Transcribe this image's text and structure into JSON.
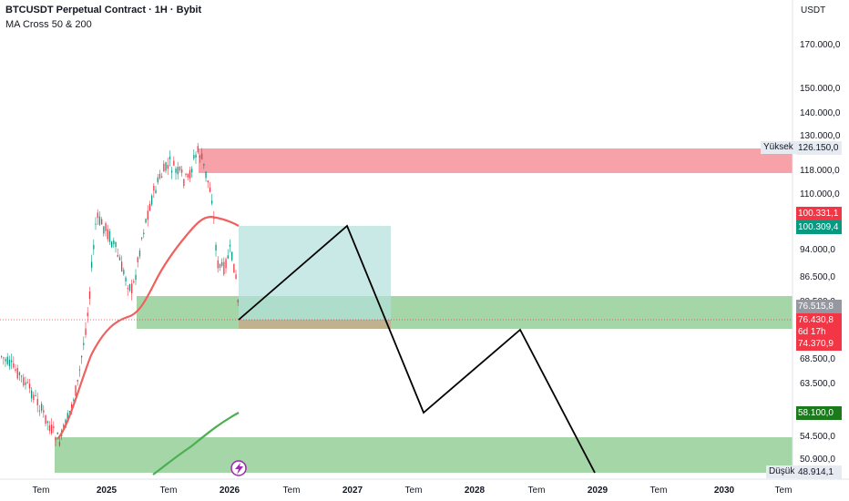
{
  "header": {
    "title": "BTCUSDT Perpetual Contract · 1H · Bybit",
    "indicator": "MA Cross 50 & 200"
  },
  "price_axis": {
    "currency": "USDT",
    "ticks": [
      "170.000,0",
      "150.000,0",
      "140.000,0",
      "130.000,0",
      "118.000,0",
      "110.000,0",
      "94.000,0",
      "86.500,0",
      "80.500,0",
      "68.500,0",
      "63.500,0",
      "54.500,0",
      "50.900,0"
    ],
    "tags": {
      "high_label": "Yüksek",
      "high_value": "126.150,0",
      "ma_red": "100.331,1",
      "ma_teal": "100.309,4",
      "gray": "76.515,8",
      "last": "76.430,8",
      "countdown": "6d 17h",
      "low_mark": "74.370,9",
      "green": "58.100,0",
      "low_label": "Düşük",
      "low_value": "48.914,1"
    }
  },
  "time_axis": {
    "labels": [
      "Tem",
      "2025",
      "Tem",
      "2026",
      "Tem",
      "2027",
      "Tem",
      "2028",
      "Tem",
      "2029",
      "Tem",
      "2030",
      "Tem"
    ]
  },
  "colors": {
    "up": "#089981",
    "down": "#f23645",
    "ma_fast": "#f0605e",
    "ma_slow": "#4caf50",
    "zone_red": "#f7a1a8",
    "zone_green": "#a5d6a7",
    "zone_teal": "#b2dfdb"
  }
}
